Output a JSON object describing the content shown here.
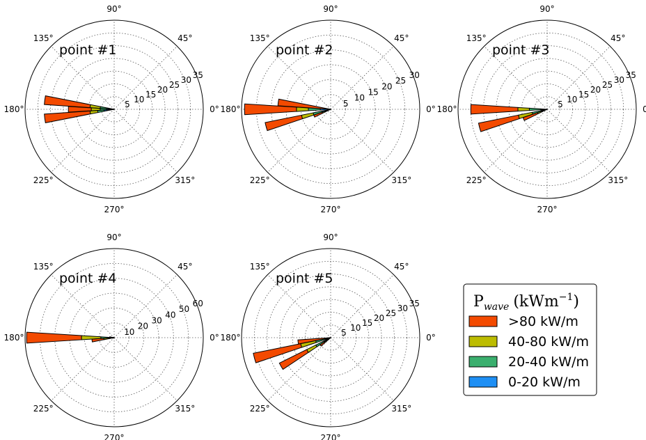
{
  "chart_data": {
    "type": "polar-bar",
    "legend": {
      "title_main": "P",
      "title_sub": "wave",
      "title_unit": "(kWm",
      "title_exp": "−1",
      "title_close": ")",
      "placement": "lower-right"
    },
    "series": [
      {
        "name": ">80 kW/m",
        "color": "#f34a00"
      },
      {
        "name": "40-80 kW/m",
        "color": "#bcbc00"
      },
      {
        "name": "20-40 kW/m",
        "color": "#3aaf6e"
      },
      {
        "name": "0-20 kW/m",
        "color": "#1e8ff4"
      }
    ],
    "angle_labels": [
      "0°",
      "45°",
      "90°",
      "135°",
      "180°",
      "225°",
      "270°",
      "315°"
    ],
    "charts": [
      {
        "title": "point #1",
        "rmax": 35,
        "rticks": [
          "5",
          "10",
          "15",
          "20",
          "25",
          "30",
          "35"
        ],
        "rtick_values": [
          5,
          10,
          15,
          20,
          25,
          30,
          35
        ],
        "sectors": [
          {
            "direction_deg": 172.5,
            "values": [
              18,
              4,
              3,
              2.5
            ]
          },
          {
            "direction_deg": 180,
            "values": [
              1,
              0.5,
              0.5,
              0.3
            ]
          },
          {
            "direction_deg": 187.5,
            "values": [
              18,
              3,
              2.5,
              4
            ]
          },
          {
            "direction_deg": 180,
            "values": [
              9,
              3.5,
              2.5,
              3
            ]
          }
        ]
      },
      {
        "title": "point #2",
        "rmax": 30,
        "rticks": [
          "5",
          "10",
          "15",
          "20",
          "25",
          "30"
        ],
        "rtick_values": [
          5,
          10,
          15,
          20,
          25,
          30
        ],
        "sectors": [
          {
            "direction_deg": 180,
            "values": [
              17.5,
              4,
              4,
              3.5
            ]
          },
          {
            "direction_deg": 195,
            "values": [
              12.5,
              4,
              3,
              3
            ]
          },
          {
            "direction_deg": 172.5,
            "values": [
              17,
              0.5,
              0.2,
              0.1
            ]
          },
          {
            "direction_deg": 187.5,
            "values": [
              0.3,
              0.3,
              0.3,
              0.3
            ]
          },
          {
            "direction_deg": 202.5,
            "values": [
              3,
              1,
              1,
              1
            ]
          }
        ]
      },
      {
        "title": "point #3",
        "rmax": 35,
        "rticks": [
          "5",
          "10",
          "15",
          "20",
          "25",
          "30",
          "35"
        ],
        "rtick_values": [
          5,
          10,
          15,
          20,
          25,
          30,
          35
        ],
        "sectors": [
          {
            "direction_deg": 180,
            "values": [
              18.5,
              4.5,
              4.5,
              2.5
            ]
          },
          {
            "direction_deg": 195,
            "values": [
              16,
              5.5,
              3.5,
              2.5
            ]
          },
          {
            "direction_deg": 202.5,
            "values": [
              6,
              2,
              1,
              1
            ]
          },
          {
            "direction_deg": 187.5,
            "values": [
              0.5,
              0.5,
              0.4,
              0.3
            ]
          }
        ]
      },
      {
        "title": "point #4",
        "rmax": 60,
        "rticks": [
          "10",
          "20",
          "30",
          "40",
          "50",
          "60"
        ],
        "rtick_values": [
          10,
          20,
          30,
          40,
          50,
          60
        ],
        "sectors": [
          {
            "direction_deg": 180,
            "values": [
              37,
              13,
              6,
              3
            ]
          },
          {
            "direction_deg": 187.5,
            "values": [
              8,
              4,
              2,
              1
            ]
          },
          {
            "direction_deg": 172.5,
            "values": [
              2,
              0.5,
              0.3,
              0.2
            ]
          },
          {
            "direction_deg": 195,
            "values": [
              0.5,
              0.3,
              0.2,
              0.2
            ]
          }
        ]
      },
      {
        "title": "point #5",
        "rmax": 35,
        "rticks": [
          "5",
          "10",
          "15",
          "20",
          "25",
          "30",
          "35"
        ],
        "rtick_values": [
          5,
          10,
          15,
          20,
          25,
          30,
          35
        ],
        "sectors": [
          {
            "direction_deg": 195,
            "values": [
              19,
              6,
              4,
              2
            ]
          },
          {
            "direction_deg": 210,
            "values": [
              12,
              4,
              3.5,
              3
            ]
          },
          {
            "direction_deg": 187.5,
            "values": [
              12,
              0.4,
              0.3,
              0.2
            ]
          },
          {
            "direction_deg": 217.5,
            "values": [
              2,
              1,
              1,
              1
            ]
          }
        ]
      }
    ]
  }
}
